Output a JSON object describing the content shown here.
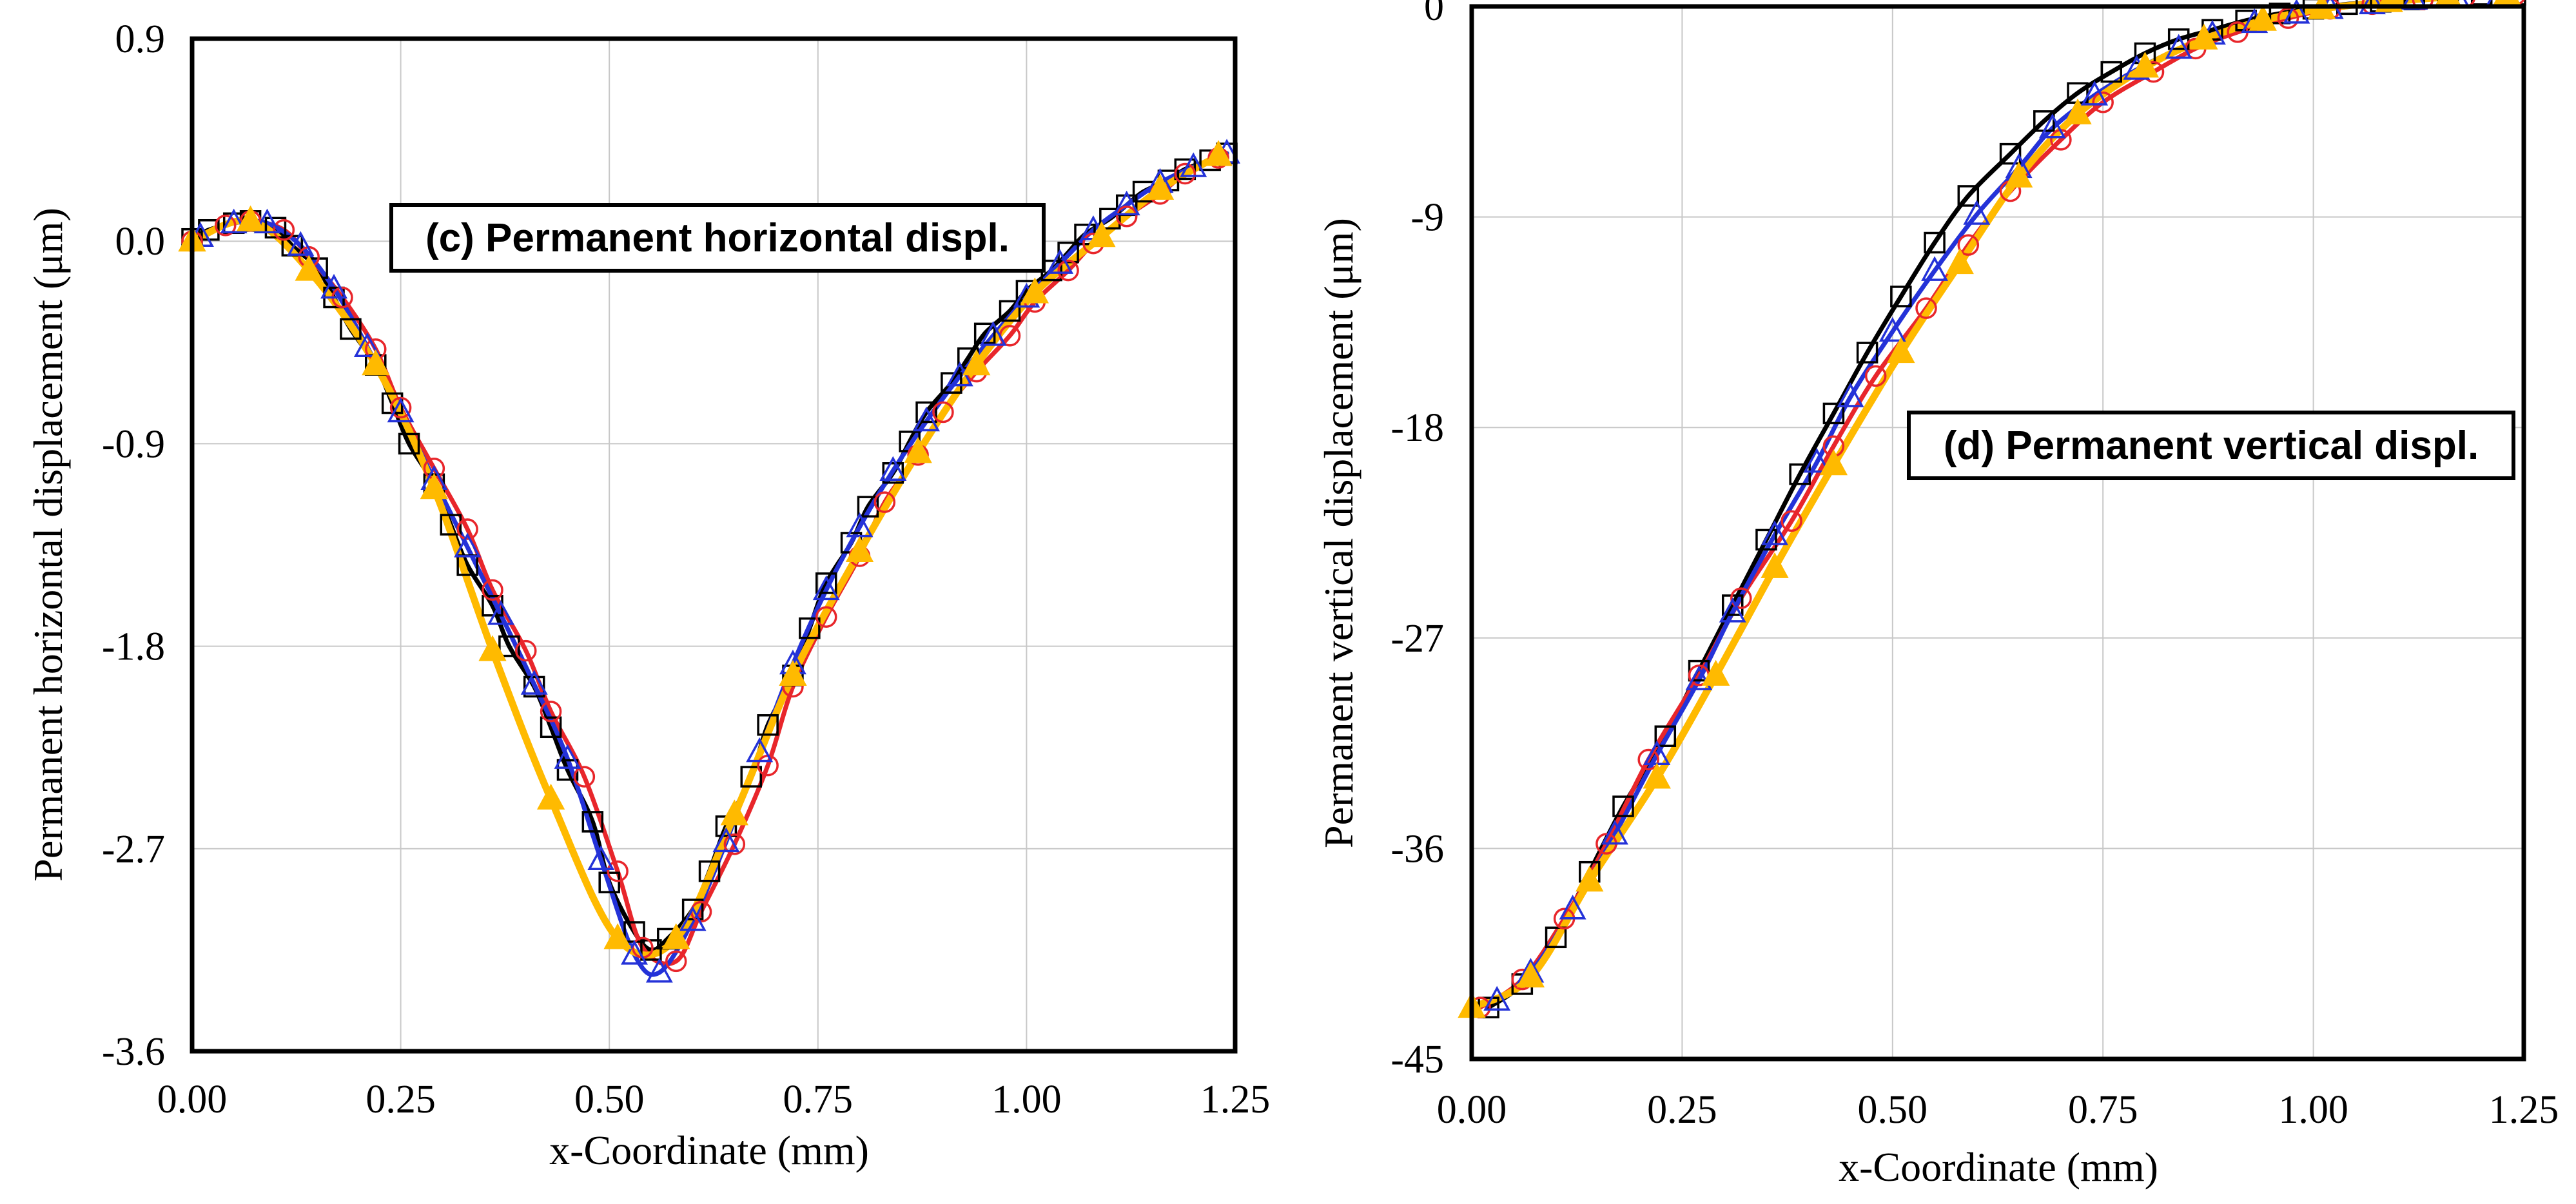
{
  "chart_data": [
    {
      "type": "line",
      "title": "(c) Permanent horizontal displ.",
      "xlabel": "x-Coordinate (mm)",
      "ylabel": "Permanent horizontal displacement (μm)",
      "xlim": [
        0,
        1.25
      ],
      "ylim": [
        -3.6,
        0.9
      ],
      "xticks": [
        0,
        0.25,
        0.5,
        0.75,
        1.0,
        1.25
      ],
      "xtick_labels": [
        "0.00",
        "0.25",
        "0.50",
        "0.75",
        "1.00",
        "1.25"
      ],
      "yticks": [
        0.9,
        0.0,
        -0.9,
        -1.8,
        -2.7,
        -3.6
      ],
      "ytick_labels": [
        "0.9",
        "0.0",
        "-0.9",
        "-1.8",
        "-2.7",
        "-3.6"
      ],
      "grid": true,
      "series": [
        {
          "name": "black (squares)",
          "color": "#000000",
          "marker": "square",
          "x": [
            0.0,
            0.02,
            0.05,
            0.07,
            0.1,
            0.12,
            0.15,
            0.17,
            0.19,
            0.22,
            0.24,
            0.26,
            0.29,
            0.31,
            0.33,
            0.36,
            0.38,
            0.41,
            0.43,
            0.45,
            0.48,
            0.5,
            0.53,
            0.55,
            0.57,
            0.6,
            0.62,
            0.64,
            0.67,
            0.69,
            0.72,
            0.74,
            0.76,
            0.79,
            0.81,
            0.84,
            0.86,
            0.88,
            0.91,
            0.93,
            0.95,
            0.98,
            1.0,
            1.03,
            1.05,
            1.07,
            1.1,
            1.12,
            1.14,
            1.17,
            1.19,
            1.22,
            1.24
          ],
          "y": [
            0.01,
            0.05,
            0.08,
            0.09,
            0.06,
            -0.02,
            -0.12,
            -0.25,
            -0.39,
            -0.55,
            -0.72,
            -0.9,
            -1.08,
            -1.26,
            -1.44,
            -1.62,
            -1.8,
            -1.98,
            -2.16,
            -2.35,
            -2.58,
            -2.85,
            -3.07,
            -3.15,
            -3.1,
            -2.97,
            -2.8,
            -2.6,
            -2.38,
            -2.15,
            -1.93,
            -1.72,
            -1.52,
            -1.34,
            -1.18,
            -1.03,
            -0.89,
            -0.76,
            -0.63,
            -0.52,
            -0.41,
            -0.31,
            -0.22,
            -0.13,
            -0.05,
            0.03,
            0.1,
            0.16,
            0.22,
            0.27,
            0.32,
            0.36,
            0.39
          ]
        },
        {
          "name": "red (circles)",
          "color": "#e8262b",
          "marker": "circle",
          "x": [
            0.0,
            0.04,
            0.07,
            0.11,
            0.14,
            0.18,
            0.22,
            0.25,
            0.29,
            0.33,
            0.36,
            0.4,
            0.43,
            0.47,
            0.51,
            0.54,
            0.58,
            0.61,
            0.65,
            0.69,
            0.72,
            0.76,
            0.8,
            0.83,
            0.87,
            0.9,
            0.94,
            0.98,
            1.01,
            1.05,
            1.08,
            1.12,
            1.16,
            1.19,
            1.23
          ],
          "y": [
            0.0,
            0.07,
            0.09,
            0.05,
            -0.07,
            -0.25,
            -0.48,
            -0.74,
            -1.01,
            -1.28,
            -1.55,
            -1.82,
            -2.09,
            -2.38,
            -2.8,
            -3.14,
            -3.2,
            -2.98,
            -2.68,
            -2.33,
            -1.98,
            -1.67,
            -1.4,
            -1.16,
            -0.95,
            -0.76,
            -0.58,
            -0.42,
            -0.27,
            -0.13,
            -0.01,
            0.11,
            0.21,
            0.3,
            0.37
          ]
        },
        {
          "name": "blue (triangles)",
          "color": "#2432d8",
          "marker": "triangle",
          "x": [
            0.01,
            0.05,
            0.09,
            0.13,
            0.17,
            0.21,
            0.25,
            0.29,
            0.33,
            0.37,
            0.41,
            0.45,
            0.49,
            0.53,
            0.56,
            0.6,
            0.64,
            0.68,
            0.72,
            0.76,
            0.8,
            0.84,
            0.88,
            0.92,
            0.96,
            1.0,
            1.04,
            1.08,
            1.12,
            1.16,
            1.2,
            1.24
          ],
          "y": [
            0.02,
            0.08,
            0.08,
            -0.02,
            -0.21,
            -0.47,
            -0.76,
            -1.06,
            -1.36,
            -1.66,
            -1.97,
            -2.3,
            -2.75,
            -3.17,
            -3.25,
            -3.02,
            -2.67,
            -2.27,
            -1.88,
            -1.55,
            -1.27,
            -1.02,
            -0.8,
            -0.6,
            -0.42,
            -0.25,
            -0.1,
            0.05,
            0.16,
            0.26,
            0.33,
            0.39
          ]
        },
        {
          "name": "orange (filled triangles)",
          "color": "#ffba00",
          "marker": "filled-triangle",
          "x": [
            0.0,
            0.07,
            0.14,
            0.22,
            0.29,
            0.36,
            0.43,
            0.51,
            0.58,
            0.65,
            0.72,
            0.8,
            0.87,
            0.94,
            1.01,
            1.09,
            1.16,
            1.23
          ],
          "y": [
            0.0,
            0.09,
            -0.13,
            -0.55,
            -1.1,
            -1.82,
            -2.48,
            -3.1,
            -3.1,
            -2.55,
            -1.93,
            -1.38,
            -0.94,
            -0.55,
            -0.23,
            0.02,
            0.23,
            0.38
          ]
        }
      ]
    },
    {
      "type": "line",
      "title": "(d) Permanent vertical displ.",
      "xlabel": "x-Coordinate (mm)",
      "ylabel": "Permanent vertical displacement (μm)",
      "xlim": [
        0,
        1.25
      ],
      "ylim": [
        -45,
        0
      ],
      "xticks": [
        0,
        0.25,
        0.5,
        0.75,
        1.0,
        1.25
      ],
      "xtick_labels": [
        "0.00",
        "0.25",
        "0.50",
        "0.75",
        "1.00",
        "1.25"
      ],
      "yticks": [
        0,
        -9,
        -18,
        -27,
        -36,
        -45
      ],
      "ytick_labels": [
        "0",
        "-9",
        "-18",
        "-27",
        "-36",
        "-45"
      ],
      "grid": true,
      "series": [
        {
          "name": "black (squares)",
          "color": "#000000",
          "marker": "square",
          "x": [
            0.02,
            0.06,
            0.1,
            0.14,
            0.18,
            0.23,
            0.27,
            0.31,
            0.35,
            0.39,
            0.43,
            0.47,
            0.51,
            0.55,
            0.59,
            0.64,
            0.68,
            0.72,
            0.76,
            0.8,
            0.84,
            0.88,
            0.92,
            0.96,
            1.0,
            1.04,
            1.08,
            1.12,
            1.16,
            1.2,
            1.24
          ],
          "y": [
            -42.8,
            -41.8,
            -39.8,
            -37.0,
            -34.2,
            -31.2,
            -28.4,
            -25.6,
            -22.8,
            -20.0,
            -17.4,
            -14.8,
            -12.4,
            -10.1,
            -8.1,
            -6.3,
            -4.9,
            -3.7,
            -2.8,
            -2.0,
            -1.4,
            -1.0,
            -0.6,
            -0.3,
            -0.1,
            0.1,
            0.2,
            0.3,
            0.4,
            0.5,
            0.5
          ]
        },
        {
          "name": "red (circles)",
          "color": "#e8262b",
          "marker": "circle",
          "x": [
            0.01,
            0.06,
            0.11,
            0.16,
            0.21,
            0.27,
            0.32,
            0.38,
            0.43,
            0.48,
            0.54,
            0.59,
            0.64,
            0.7,
            0.75,
            0.81,
            0.86,
            0.91,
            0.97,
            1.02,
            1.07,
            1.13,
            1.18,
            1.24
          ],
          "y": [
            -42.8,
            -41.6,
            -39.0,
            -35.8,
            -32.2,
            -28.6,
            -25.3,
            -22.0,
            -18.8,
            -15.8,
            -12.9,
            -10.2,
            -7.9,
            -5.7,
            -4.1,
            -2.8,
            -1.8,
            -1.1,
            -0.5,
            -0.1,
            0.1,
            0.3,
            0.4,
            0.5
          ]
        },
        {
          "name": "blue (triangles)",
          "color": "#2432d8",
          "marker": "triangle",
          "x": [
            0.03,
            0.07,
            0.12,
            0.17,
            0.22,
            0.27,
            0.31,
            0.36,
            0.41,
            0.45,
            0.5,
            0.55,
            0.6,
            0.65,
            0.69,
            0.74,
            0.79,
            0.84,
            0.88,
            0.93,
            0.98,
            1.02,
            1.07,
            1.12,
            1.17,
            1.22
          ],
          "y": [
            -42.5,
            -41.3,
            -38.6,
            -35.4,
            -32.0,
            -28.8,
            -25.9,
            -22.6,
            -19.5,
            -16.7,
            -13.9,
            -11.3,
            -8.9,
            -6.9,
            -5.2,
            -3.8,
            -2.7,
            -1.8,
            -1.2,
            -0.7,
            -0.3,
            -0.1,
            0.1,
            0.3,
            0.4,
            0.4
          ]
        },
        {
          "name": "orange (filled triangles)",
          "color": "#ffba00",
          "marker": "filled-triangle",
          "x": [
            0.0,
            0.07,
            0.14,
            0.22,
            0.29,
            0.36,
            0.43,
            0.51,
            0.58,
            0.65,
            0.72,
            0.8,
            0.87,
            0.94,
            1.01,
            1.09,
            1.16,
            1.23
          ],
          "y": [
            -42.8,
            -41.5,
            -37.4,
            -33.0,
            -28.6,
            -24.0,
            -19.6,
            -14.8,
            -11.0,
            -7.3,
            -4.6,
            -2.6,
            -1.4,
            -0.6,
            -0.1,
            0.2,
            0.4,
            0.5
          ]
        }
      ]
    }
  ]
}
